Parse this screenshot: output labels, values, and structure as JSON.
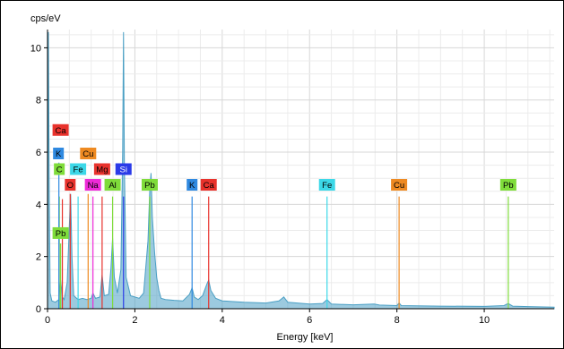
{
  "chart_data": {
    "type": "line",
    "title": "",
    "xlabel": "Energy [keV]",
    "ylabel": "cps/eV",
    "xlim": [
      0,
      11.6
    ],
    "ylim": [
      0,
      10.7
    ],
    "x_ticks": [
      0,
      2,
      4,
      6,
      8,
      10
    ],
    "y_ticks": [
      0,
      2,
      4,
      6,
      8,
      10
    ],
    "grid": true,
    "spectrum": {
      "color": "#4a9fc4",
      "points": [
        [
          0.0,
          0.0
        ],
        [
          0.02,
          10.6
        ],
        [
          0.04,
          4.5
        ],
        [
          0.06,
          0.6
        ],
        [
          0.1,
          0.3
        ],
        [
          0.18,
          0.25
        ],
        [
          0.26,
          0.35
        ],
        [
          0.3,
          1.1
        ],
        [
          0.34,
          0.45
        ],
        [
          0.38,
          0.35
        ],
        [
          0.45,
          1.0
        ],
        [
          0.5,
          3.2
        ],
        [
          0.53,
          4.4
        ],
        [
          0.56,
          2.0
        ],
        [
          0.6,
          0.5
        ],
        [
          0.7,
          0.35
        ],
        [
          0.8,
          0.4
        ],
        [
          0.9,
          0.35
        ],
        [
          1.0,
          0.4
        ],
        [
          1.04,
          0.6
        ],
        [
          1.1,
          0.4
        ],
        [
          1.2,
          0.45
        ],
        [
          1.25,
          1.3
        ],
        [
          1.3,
          0.5
        ],
        [
          1.4,
          0.55
        ],
        [
          1.45,
          1.5
        ],
        [
          1.49,
          2.7
        ],
        [
          1.53,
          1.2
        ],
        [
          1.6,
          0.6
        ],
        [
          1.68,
          1.5
        ],
        [
          1.72,
          6.0
        ],
        [
          1.74,
          10.6
        ],
        [
          1.76,
          5.5
        ],
        [
          1.8,
          1.2
        ],
        [
          1.9,
          0.5
        ],
        [
          2.0,
          0.45
        ],
        [
          2.1,
          0.4
        ],
        [
          2.2,
          0.6
        ],
        [
          2.3,
          2.6
        ],
        [
          2.34,
          4.5
        ],
        [
          2.37,
          5.2
        ],
        [
          2.4,
          3.5
        ],
        [
          2.45,
          2.2
        ],
        [
          2.5,
          1.2
        ],
        [
          2.55,
          0.7
        ],
        [
          2.6,
          0.4
        ],
        [
          2.7,
          0.35
        ],
        [
          2.9,
          0.32
        ],
        [
          3.1,
          0.3
        ],
        [
          3.25,
          0.55
        ],
        [
          3.31,
          0.8
        ],
        [
          3.36,
          0.45
        ],
        [
          3.45,
          0.35
        ],
        [
          3.55,
          0.5
        ],
        [
          3.65,
          0.95
        ],
        [
          3.69,
          1.1
        ],
        [
          3.74,
          0.7
        ],
        [
          3.85,
          0.4
        ],
        [
          4.0,
          0.3
        ],
        [
          4.5,
          0.25
        ],
        [
          5.0,
          0.22
        ],
        [
          5.3,
          0.3
        ],
        [
          5.41,
          0.45
        ],
        [
          5.5,
          0.25
        ],
        [
          6.0,
          0.18
        ],
        [
          6.3,
          0.2
        ],
        [
          6.4,
          0.35
        ],
        [
          6.5,
          0.18
        ],
        [
          7.0,
          0.15
        ],
        [
          7.48,
          0.18
        ],
        [
          7.6,
          0.14
        ],
        [
          8.0,
          0.12
        ],
        [
          8.05,
          0.22
        ],
        [
          8.1,
          0.12
        ],
        [
          9.0,
          0.1
        ],
        [
          10.0,
          0.09
        ],
        [
          10.45,
          0.12
        ],
        [
          10.55,
          0.2
        ],
        [
          10.65,
          0.1
        ],
        [
          11.0,
          0.08
        ],
        [
          11.6,
          0.06
        ]
      ]
    },
    "element_lines": [
      {
        "element": "Ca",
        "energy": 0.34,
        "height": 4.2,
        "color": "#e8322c"
      },
      {
        "element": "C",
        "energy": 0.27,
        "height": 4.3,
        "color": "#7fdc3a"
      },
      {
        "element": "K",
        "energy": 0.26,
        "height": 5.6,
        "color": "#2f89e0"
      },
      {
        "element": "O",
        "energy": 0.52,
        "height": 4.4,
        "color": "#e8322c"
      },
      {
        "element": "Cu",
        "energy": 0.93,
        "height": 4.4,
        "color": "#ee8a22"
      },
      {
        "element": "Fe",
        "energy": 0.7,
        "height": 4.3,
        "color": "#3cd8e8"
      },
      {
        "element": "Na",
        "energy": 1.04,
        "height": 4.3,
        "color": "#ee2ad8"
      },
      {
        "element": "Mg",
        "energy": 1.25,
        "height": 4.3,
        "color": "#e8322c"
      },
      {
        "element": "Al",
        "energy": 1.49,
        "height": 4.3,
        "color": "#7fdc3a"
      },
      {
        "element": "Si",
        "energy": 1.74,
        "height": 4.3,
        "color": "#2a3ae8"
      },
      {
        "element": "Pb",
        "energy": 2.34,
        "height": 4.3,
        "color": "#7fdc3a"
      },
      {
        "element": "K",
        "energy": 3.31,
        "height": 4.3,
        "color": "#2f89e0"
      },
      {
        "element": "Ca",
        "energy": 3.69,
        "height": 4.3,
        "color": "#e8322c"
      },
      {
        "element": "Fe",
        "energy": 6.4,
        "height": 4.3,
        "color": "#3cd8e8"
      },
      {
        "element": "Cu",
        "energy": 8.05,
        "height": 4.3,
        "color": "#ee8a22"
      },
      {
        "element": "Pb",
        "energy": 10.55,
        "height": 4.3,
        "color": "#7fdc3a"
      },
      {
        "element": "Pb",
        "energy": 0.3,
        "height": 2.5,
        "color": "#7fdc3a"
      }
    ],
    "element_labels": [
      {
        "text": "Ca",
        "energy": 0.3,
        "y": 6.85,
        "color": "#e8322c",
        "text_color": "#000000"
      },
      {
        "text": "K",
        "energy": 0.25,
        "y": 5.95,
        "color": "#2f89e0",
        "text_color": "#000000"
      },
      {
        "text": "Cu",
        "energy": 0.93,
        "y": 5.95,
        "color": "#ee8a22",
        "text_color": "#000000"
      },
      {
        "text": "C",
        "energy": 0.27,
        "y": 5.35,
        "color": "#7fdc3a",
        "text_color": "#000000"
      },
      {
        "text": "Fe",
        "energy": 0.7,
        "y": 5.35,
        "color": "#3cd8e8",
        "text_color": "#000000"
      },
      {
        "text": "Mg",
        "energy": 1.25,
        "y": 5.35,
        "color": "#e8322c",
        "text_color": "#000000"
      },
      {
        "text": "Si",
        "energy": 1.74,
        "y": 5.35,
        "color": "#2a3ae8",
        "text_color": "#ffffff"
      },
      {
        "text": "O",
        "energy": 0.52,
        "y": 4.75,
        "color": "#e8322c",
        "text_color": "#000000"
      },
      {
        "text": "Na",
        "energy": 1.04,
        "y": 4.75,
        "color": "#ee2ad8",
        "text_color": "#000000"
      },
      {
        "text": "Al",
        "energy": 1.49,
        "y": 4.75,
        "color": "#7fdc3a",
        "text_color": "#000000"
      },
      {
        "text": "Pb",
        "energy": 2.34,
        "y": 4.75,
        "color": "#7fdc3a",
        "text_color": "#000000"
      },
      {
        "text": "K",
        "energy": 3.31,
        "y": 4.75,
        "color": "#2f89e0",
        "text_color": "#000000"
      },
      {
        "text": "Ca",
        "energy": 3.69,
        "y": 4.75,
        "color": "#e8322c",
        "text_color": "#000000"
      },
      {
        "text": "Fe",
        "energy": 6.4,
        "y": 4.75,
        "color": "#3cd8e8",
        "text_color": "#000000"
      },
      {
        "text": "Cu",
        "energy": 8.05,
        "y": 4.75,
        "color": "#ee8a22",
        "text_color": "#000000"
      },
      {
        "text": "Pb",
        "energy": 10.55,
        "y": 4.75,
        "color": "#7fdc3a",
        "text_color": "#000000"
      },
      {
        "text": "Pb",
        "energy": 0.3,
        "y": 2.9,
        "color": "#7fdc3a",
        "text_color": "#000000"
      }
    ]
  }
}
